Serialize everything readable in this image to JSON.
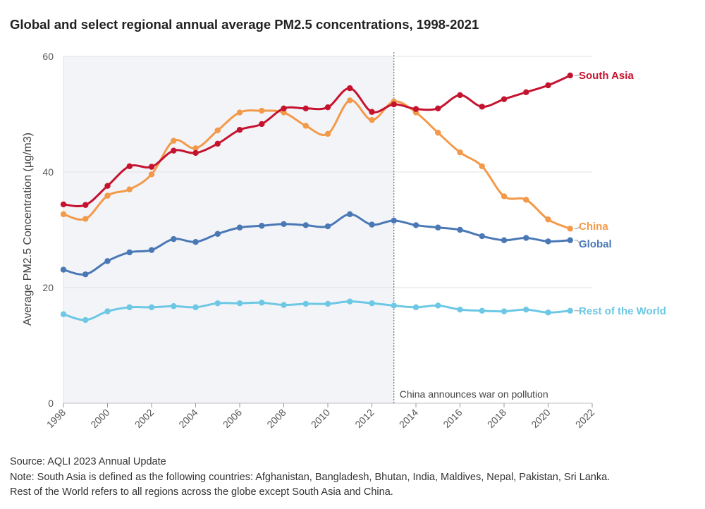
{
  "chart_data": {
    "type": "line",
    "title": "Global and select regional annual average PM2.5 concentrations, 1998-2021",
    "xlabel": "",
    "ylabel": "Average PM2.5 Concentration (µg/m3)",
    "xlim": [
      1998,
      2022
    ],
    "ylim": [
      0,
      60
    ],
    "xticks": [
      1998,
      2000,
      2002,
      2004,
      2006,
      2008,
      2010,
      2012,
      2014,
      2016,
      2018,
      2020,
      2022
    ],
    "yticks": [
      0,
      20,
      40,
      60
    ],
    "grid": true,
    "x": [
      1998,
      1999,
      2000,
      2001,
      2002,
      2003,
      2004,
      2005,
      2006,
      2007,
      2008,
      2009,
      2010,
      2011,
      2012,
      2013,
      2014,
      2015,
      2016,
      2017,
      2018,
      2019,
      2020,
      2021
    ],
    "series": [
      {
        "name": "Rest of the World",
        "color": "#6cc8e4",
        "values": [
          15.4,
          14.4,
          15.9,
          16.6,
          16.6,
          16.8,
          16.6,
          17.3,
          17.3,
          17.4,
          17.0,
          17.2,
          17.2,
          17.6,
          17.3,
          16.9,
          16.6,
          16.9,
          16.2,
          16.0,
          15.9,
          16.2,
          15.7,
          16.0
        ]
      },
      {
        "name": "Global",
        "color": "#4a78b5",
        "values": [
          23.1,
          22.3,
          24.6,
          26.1,
          26.5,
          28.4,
          27.9,
          29.3,
          30.4,
          30.7,
          31.0,
          30.8,
          30.6,
          32.7,
          30.9,
          31.6,
          30.8,
          30.4,
          30.0,
          28.9,
          28.2,
          28.6,
          28.0,
          28.2
        ]
      },
      {
        "name": "China",
        "color": "#f39a4a",
        "values": [
          32.7,
          31.9,
          35.9,
          37.0,
          39.6,
          45.4,
          44.1,
          47.2,
          50.3,
          50.6,
          50.3,
          48.0,
          46.6,
          52.4,
          49.0,
          52.2,
          50.3,
          46.8,
          43.4,
          41.0,
          35.8,
          35.2,
          31.8,
          30.2
        ]
      },
      {
        "name": "South Asia",
        "color": "#c5132f",
        "values": [
          34.4,
          34.3,
          37.6,
          41.0,
          40.9,
          43.7,
          43.3,
          44.9,
          47.3,
          48.3,
          51.0,
          51.0,
          51.2,
          54.5,
          50.4,
          51.7,
          50.9,
          51.0,
          53.3,
          51.3,
          52.6,
          53.8,
          55.0,
          56.7
        ]
      }
    ],
    "shaded_region": {
      "from": 1998,
      "to": 2013
    },
    "annotations": [
      {
        "x": 2013,
        "text": "China announces war on pollution"
      }
    ]
  },
  "footer": {
    "source": "Source: AQLI 2023 Annual Update",
    "note": "Note: South Asia is defined as the following countries: Afghanistan, Bangladesh, Bhutan, India, Maldives, Nepal, Pakistan, Sri Lanka.",
    "note2": "Rest of the World refers to all regions across the globe except South Asia and China."
  }
}
